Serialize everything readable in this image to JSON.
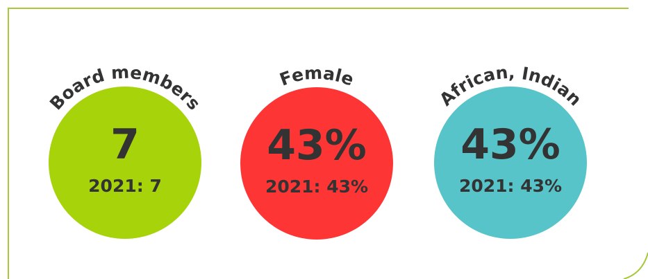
{
  "items": [
    {
      "label": "Board members",
      "value": "7",
      "prior": "2021: 7",
      "color": "#a6d30a"
    },
    {
      "label": "Female",
      "value": "43%",
      "prior": "2021: 43%",
      "color": "#fd3535"
    },
    {
      "label": "African, Indian",
      "value": "43%",
      "prior": "2021: 43%",
      "color": "#56c4c8"
    }
  ]
}
